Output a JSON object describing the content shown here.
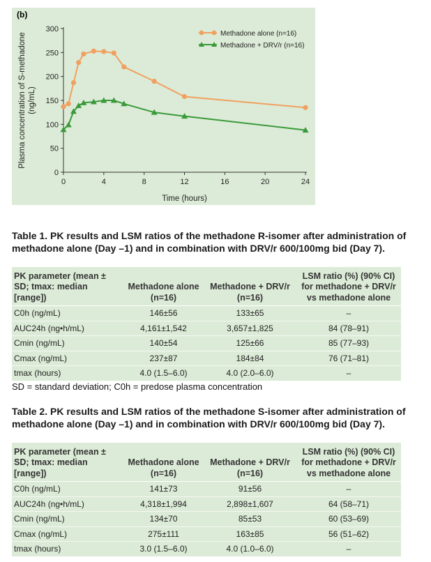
{
  "figure": {
    "panel_label": "(b)",
    "legend_position": "top-right",
    "colors": {
      "background": "#dcebd7",
      "methadone_alone": "#f0a060",
      "methadone_drv": "#3a9a3a"
    }
  },
  "chart_data": {
    "type": "line",
    "title": "",
    "xlabel": "Time (hours)",
    "ylabel": "Plasma concentration of S-methadone (ng/mL)",
    "ylabel_lines": [
      "Plasma concentration of S-methadone",
      "(ng/mL)"
    ],
    "xlim": [
      0,
      24
    ],
    "ylim": [
      0,
      300
    ],
    "xticks": [
      0,
      4,
      8,
      12,
      16,
      20,
      24
    ],
    "yticks": [
      0,
      50,
      100,
      150,
      200,
      250,
      300
    ],
    "grid": false,
    "series": [
      {
        "name": "Methadone alone (n=16)",
        "marker": "circle",
        "x": [
          0,
          0.5,
          1,
          1.5,
          2,
          3,
          4,
          5,
          6,
          9,
          12,
          24
        ],
        "y": [
          137,
          143,
          187,
          229,
          247,
          253,
          252,
          249,
          220,
          190,
          158,
          135
        ]
      },
      {
        "name": "Methadone + DRV/r (n=16)",
        "marker": "triangle",
        "x": [
          0,
          0.5,
          1,
          1.5,
          2,
          3,
          4,
          5,
          6,
          9,
          12,
          24
        ],
        "y": [
          89,
          99,
          127,
          139,
          145,
          147,
          150,
          150,
          143,
          125,
          117,
          88
        ]
      }
    ]
  },
  "table1": {
    "caption": "Table 1. PK results and LSM ratios of the methadone R-isomer after administration of methadone alone (Day –1) and in combination with DRV/r 600/100mg bid (Day 7).",
    "headers": [
      "PK parameter (mean ± SD; tmax: median [range])",
      "Methadone alone (n=16)",
      "Methadone + DRV/r (n=16)",
      "LSM ratio (%) (90% CI) for methadone + DRV/r vs methadone alone"
    ],
    "rows": [
      [
        "C0h (ng/mL)",
        "146±56",
        "133±65",
        "–"
      ],
      [
        "AUC24h (ng•h/mL)",
        "4,161±1,542",
        "3,657±1,825",
        "84 (78–91)"
      ],
      [
        "Cmin (ng/mL)",
        "140±54",
        "125±66",
        "85 (77–93)"
      ],
      [
        "Cmax (ng/mL)",
        "237±87",
        "184±84",
        "76 (71–81)"
      ],
      [
        "tmax (hours)",
        "4.0 (1.5–6.0)",
        "4.0 (2.0–6.0)",
        "–"
      ]
    ],
    "footnote": "SD = standard deviation; C0h = predose plasma concentration"
  },
  "table2": {
    "caption": "Table 2. PK results and LSM ratios of the methadone S-isomer after administration of methadone alone (Day –1) and in combination with DRV/r 600/100mg bid (Day 7).",
    "headers": [
      "PK parameter (mean ± SD; tmax: median [range])",
      "Methadone alone (n=16)",
      "Methadone + DRV/r (n=16)",
      "LSM ratio (%) (90% CI) for methadone + DRV/r vs methadone alone"
    ],
    "rows": [
      [
        "C0h (ng/mL)",
        "141±73",
        "91±56",
        "–"
      ],
      [
        "AUC24h (ng•h/mL)",
        "4,318±1,994",
        "2,898±1,607",
        "64 (58–71)"
      ],
      [
        "Cmin (ng/mL)",
        "134±70",
        "85±53",
        "60 (53–69)"
      ],
      [
        "Cmax (ng/mL)",
        "275±111",
        "163±85",
        "56 (51–62)"
      ],
      [
        "tmax (hours)",
        "3.0 (1.5–6.0)",
        "4.0 (1.0–6.0)",
        "–"
      ]
    ]
  }
}
